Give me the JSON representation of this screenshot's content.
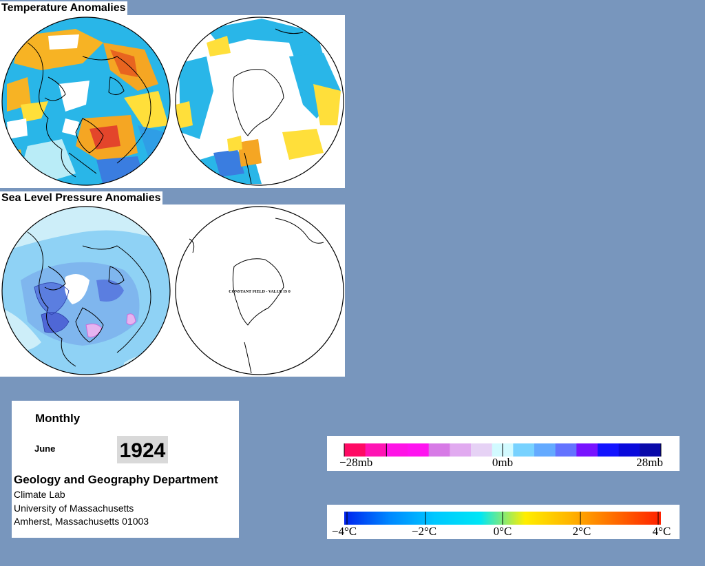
{
  "temperature": {
    "title": "Temperature Anomalies"
  },
  "pressure": {
    "title": "Sea Level Pressure Anomalies",
    "south_note": "CONSTANT FIELD - VALUE IS 0"
  },
  "info": {
    "period": "Monthly",
    "month": "June",
    "year": "1924",
    "department": "Geology and Geography Department",
    "address_lines": [
      "Climate Lab",
      "University of Massachusetts",
      "Amherst, Massachusetts 01003"
    ]
  },
  "pressure_legend": {
    "unit": "mb",
    "labels": [
      "−28mb",
      "0mb",
      "28mb"
    ],
    "colors": [
      "#ff0a64",
      "#ff14b4",
      "#ff14e6",
      "#ff14f0",
      "#d77ae6",
      "#e1aaf0",
      "#e6d2f5",
      "#d2faff",
      "#78d2ff",
      "#64aaff",
      "#6473ff",
      "#7814ff",
      "#1414ff",
      "#0a0adc",
      "#0a0aaa"
    ]
  },
  "temperature_legend": {
    "unit": "°C",
    "labels": [
      "−4°C",
      "−2°C",
      "0°C",
      "2°C",
      "4°C"
    ],
    "gradient": [
      "#0022ee",
      "#0088ff",
      "#00c8ff",
      "#00e6f5",
      "#ffee00",
      "#ffb400",
      "#ff6a00",
      "#ff2000"
    ]
  },
  "colors": {
    "page_background": "#7896bd",
    "warm_anomaly": "#f5a623",
    "cool_anomaly": "#3bbce6",
    "low_pressure": "#6f8fe8",
    "high_pressure_pink": "#d06ad8"
  }
}
